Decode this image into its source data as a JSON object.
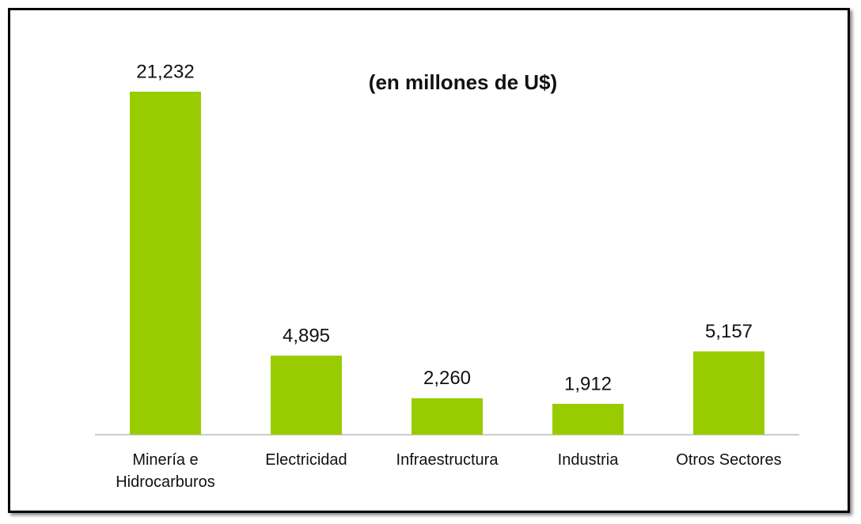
{
  "chart_data": {
    "type": "bar",
    "title": "(en millones de U$)",
    "categories": [
      "Minería e Hidrocarburos",
      "Electricidad",
      "Infraestructura",
      "Industria",
      "Otros Sectores"
    ],
    "values": [
      21232,
      4895,
      2260,
      1912,
      5157
    ],
    "value_labels": [
      "21,232",
      "4,895",
      "2,260",
      "1,912",
      "5,157"
    ],
    "color": "#99cc00"
  }
}
